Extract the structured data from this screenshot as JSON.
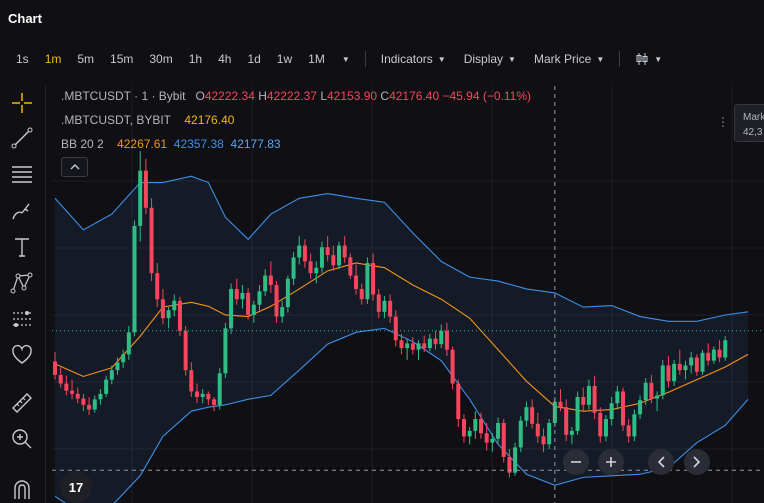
{
  "header": {
    "title": "Chart"
  },
  "toolbar": {
    "timeframes": [
      "1s",
      "1m",
      "5m",
      "15m",
      "30m",
      "1h",
      "4h",
      "1d",
      "1w",
      "1M"
    ],
    "active_timeframe": "1m",
    "indicators_label": "Indicators",
    "display_label": "Display",
    "price_type_label": "Mark Price"
  },
  "legend": {
    "symbol": ".MBTCUSDT · 1 · Bybit",
    "open_label": "O",
    "open": "42222.34",
    "high_label": "H",
    "high": "42222.37",
    "low_label": "L",
    "low": "42153.90",
    "close_label": "C",
    "close": "42176.40",
    "change": "−45.94 (−0.11%)",
    "mark_symbol": ".MBTCUSDT, BYBIT",
    "mark_value": "42176.40",
    "bb_label": "BB 20 2",
    "bb_basis": "42267.61",
    "bb_upper": "42357.38",
    "bb_lower": "42177.83"
  },
  "price_tag": {
    "label": "Mark",
    "value": "42,3"
  },
  "logo_text": "17",
  "icons": {
    "crosshair": "crosshair-icon",
    "trendline": "trendline-icon",
    "fib": "fib-levels-icon",
    "brush": "brush-icon",
    "text": "text-icon",
    "pattern": "pattern-icon",
    "measure": "measure-icon",
    "favorite": "heart-icon",
    "ruler": "ruler-icon",
    "zoom": "zoom-in-icon",
    "magnet": "magnet-icon"
  },
  "colors": {
    "up": "#2ebd85",
    "down": "#f6465d",
    "accent": "#f0b90b",
    "bb_basis": "#f7931a",
    "bb_band": "#3d8fe8"
  },
  "chart_data": {
    "type": "candlestick",
    "symbol": ".MBTCUSDT",
    "interval": "1m",
    "ylim": [
      42050,
      42480
    ],
    "candles": [
      [
        42213,
        42225,
        42190,
        42196
      ],
      [
        42196,
        42205,
        42180,
        42185
      ],
      [
        42185,
        42195,
        42170,
        42176
      ],
      [
        42176,
        42190,
        42165,
        42172
      ],
      [
        42172,
        42180,
        42160,
        42166
      ],
      [
        42166,
        42172,
        42150,
        42158
      ],
      [
        42158,
        42168,
        42145,
        42152
      ],
      [
        42152,
        42170,
        42148,
        42165
      ],
      [
        42165,
        42178,
        42158,
        42172
      ],
      [
        42172,
        42195,
        42168,
        42190
      ],
      [
        42190,
        42208,
        42184,
        42202
      ],
      [
        42202,
        42218,
        42196,
        42212
      ],
      [
        42212,
        42228,
        42205,
        42222
      ],
      [
        42222,
        42258,
        42215,
        42250
      ],
      [
        42250,
        42392,
        42245,
        42385
      ],
      [
        42385,
        42480,
        42365,
        42455
      ],
      [
        42455,
        42470,
        42400,
        42408
      ],
      [
        42408,
        42420,
        42315,
        42325
      ],
      [
        42325,
        42338,
        42282,
        42292
      ],
      [
        42292,
        42305,
        42260,
        42268
      ],
      [
        42268,
        42282,
        42255,
        42278
      ],
      [
        42278,
        42298,
        42270,
        42290
      ],
      [
        42290,
        42295,
        42245,
        42252
      ],
      [
        42252,
        42258,
        42195,
        42202
      ],
      [
        42202,
        42212,
        42168,
        42175
      ],
      [
        42175,
        42185,
        42160,
        42168
      ],
      [
        42168,
        42178,
        42160,
        42172
      ],
      [
        42172,
        42175,
        42158,
        42165
      ],
      [
        42165,
        42168,
        42150,
        42158
      ],
      [
        42158,
        42205,
        42152,
        42198
      ],
      [
        42198,
        42262,
        42192,
        42255
      ],
      [
        42255,
        42312,
        42248,
        42305
      ],
      [
        42305,
        42318,
        42285,
        42292
      ],
      [
        42292,
        42310,
        42280,
        42300
      ],
      [
        42300,
        42306,
        42266,
        42272
      ],
      [
        42272,
        42290,
        42262,
        42285
      ],
      [
        42285,
        42310,
        42278,
        42302
      ],
      [
        42302,
        42330,
        42296,
        42322
      ],
      [
        42322,
        42340,
        42300,
        42310
      ],
      [
        42310,
        42315,
        42262,
        42270
      ],
      [
        42270,
        42290,
        42262,
        42282
      ],
      [
        42282,
        42322,
        42275,
        42318
      ],
      [
        42318,
        42352,
        42310,
        42345
      ],
      [
        42345,
        42372,
        42336,
        42360
      ],
      [
        42360,
        42368,
        42332,
        42340
      ],
      [
        42340,
        42350,
        42318,
        42325
      ],
      [
        42325,
        42340,
        42312,
        42332
      ],
      [
        42332,
        42365,
        42325,
        42358
      ],
      [
        42358,
        42372,
        42340,
        42348
      ],
      [
        42348,
        42360,
        42328,
        42335
      ],
      [
        42335,
        42365,
        42330,
        42360
      ],
      [
        42360,
        42372,
        42338,
        42345
      ],
      [
        42345,
        42350,
        42318,
        42322
      ],
      [
        42322,
        42336,
        42298,
        42305
      ],
      [
        42305,
        42312,
        42285,
        42292
      ],
      [
        42292,
        42345,
        42286,
        42338
      ],
      [
        42338,
        42350,
        42290,
        42298
      ],
      [
        42298,
        42305,
        42268,
        42276
      ],
      [
        42276,
        42296,
        42268,
        42290
      ],
      [
        42290,
        42298,
        42262,
        42270
      ],
      [
        42270,
        42278,
        42232,
        42240
      ],
      [
        42240,
        42248,
        42222,
        42230
      ],
      [
        42230,
        42242,
        42215,
        42236
      ],
      [
        42236,
        42244,
        42222,
        42228
      ],
      [
        42228,
        42240,
        42215,
        42236
      ],
      [
        42236,
        42246,
        42225,
        42230
      ],
      [
        42230,
        42248,
        42226,
        42242
      ],
      [
        42242,
        42252,
        42228,
        42235
      ],
      [
        42235,
        42260,
        42230,
        42252
      ],
      [
        42252,
        42262,
        42220,
        42228
      ],
      [
        42228,
        42232,
        42178,
        42185
      ],
      [
        42185,
        42190,
        42130,
        42140
      ],
      [
        42140,
        42146,
        42110,
        42118
      ],
      [
        42118,
        42130,
        42108,
        42125
      ],
      [
        42125,
        42150,
        42115,
        42140
      ],
      [
        42140,
        42148,
        42115,
        42122
      ],
      [
        42122,
        42135,
        42100,
        42110
      ],
      [
        42110,
        42122,
        42098,
        42115
      ],
      [
        42115,
        42142,
        42108,
        42135
      ],
      [
        42135,
        42140,
        42085,
        42092
      ],
      [
        42092,
        42102,
        42066,
        42072
      ],
      [
        42072,
        42110,
        42068,
        42104
      ],
      [
        42104,
        42144,
        42098,
        42138
      ],
      [
        42138,
        42162,
        42130,
        42155
      ],
      [
        42155,
        42165,
        42128,
        42134
      ],
      [
        42134,
        42148,
        42110,
        42118
      ],
      [
        42118,
        42128,
        42098,
        42108
      ],
      [
        42108,
        42140,
        42102,
        42135
      ],
      [
        42135,
        42168,
        42130,
        42162
      ],
      [
        42162,
        42178,
        42150,
        42155
      ],
      [
        42155,
        42165,
        42112,
        42120
      ],
      [
        42120,
        42130,
        42108,
        42125
      ],
      [
        42125,
        42175,
        42120,
        42168
      ],
      [
        42168,
        42180,
        42150,
        42158
      ],
      [
        42158,
        42190,
        42152,
        42182
      ],
      [
        42182,
        42195,
        42140,
        42148
      ],
      [
        42148,
        42155,
        42110,
        42118
      ],
      [
        42118,
        42145,
        42112,
        42140
      ],
      [
        42140,
        42168,
        42132,
        42160
      ],
      [
        42160,
        42182,
        42152,
        42175
      ],
      [
        42175,
        42180,
        42125,
        42132
      ],
      [
        42132,
        42140,
        42110,
        42118
      ],
      [
        42118,
        42152,
        42112,
        42146
      ],
      [
        42146,
        42170,
        42140,
        42164
      ],
      [
        42164,
        42192,
        42158,
        42186
      ],
      [
        42186,
        42196,
        42160,
        42166
      ],
      [
        42166,
        42175,
        42150,
        42170
      ],
      [
        42170,
        42215,
        42165,
        42208
      ],
      [
        42208,
        42220,
        42180,
        42188
      ],
      [
        42188,
        42215,
        42182,
        42210
      ],
      [
        42210,
        42228,
        42196,
        42202
      ],
      [
        42202,
        42214,
        42190,
        42208
      ],
      [
        42208,
        42225,
        42198,
        42218
      ],
      [
        42218,
        42222,
        42195,
        42200
      ],
      [
        42200,
        42228,
        42196,
        42224
      ],
      [
        42224,
        42236,
        42208,
        42214
      ],
      [
        42214,
        42232,
        42210,
        42228
      ],
      [
        42228,
        42240,
        42212,
        42218
      ],
      [
        42218,
        42245,
        42214,
        42240
      ]
    ],
    "bb_upper": [
      [
        0,
        42420
      ],
      [
        5,
        42380
      ],
      [
        10,
        42400
      ],
      [
        15,
        42440
      ],
      [
        19,
        42440
      ],
      [
        24,
        42448
      ],
      [
        27,
        42440
      ],
      [
        30,
        42396
      ],
      [
        34,
        42368
      ],
      [
        38,
        42400
      ],
      [
        43,
        42420
      ],
      [
        48,
        42426
      ],
      [
        53,
        42420
      ],
      [
        58,
        42415
      ],
      [
        63,
        42376
      ],
      [
        68,
        42340
      ],
      [
        73,
        42320
      ],
      [
        78,
        42315
      ],
      [
        83,
        42305
      ],
      [
        88,
        42300
      ],
      [
        93,
        42282
      ],
      [
        98,
        42284
      ],
      [
        103,
        42270
      ],
      [
        108,
        42264
      ],
      [
        113,
        42264
      ],
      [
        118,
        42272
      ],
      [
        122,
        42276
      ]
    ],
    "bb_basis": [
      [
        0,
        42210
      ],
      [
        5,
        42194
      ],
      [
        10,
        42205
      ],
      [
        15,
        42245
      ],
      [
        19,
        42282
      ],
      [
        24,
        42288
      ],
      [
        27,
        42283
      ],
      [
        30,
        42272
      ],
      [
        34,
        42270
      ],
      [
        38,
        42283
      ],
      [
        43,
        42305
      ],
      [
        48,
        42328
      ],
      [
        53,
        42338
      ],
      [
        58,
        42332
      ],
      [
        63,
        42310
      ],
      [
        68,
        42292
      ],
      [
        73,
        42268
      ],
      [
        78,
        42228
      ],
      [
        83,
        42188
      ],
      [
        88,
        42156
      ],
      [
        93,
        42150
      ],
      [
        98,
        42152
      ],
      [
        103,
        42160
      ],
      [
        108,
        42174
      ],
      [
        113,
        42190
      ],
      [
        118,
        42206
      ],
      [
        122,
        42222
      ]
    ],
    "bb_lower": [
      [
        0,
        42042
      ],
      [
        5,
        42018
      ],
      [
        10,
        42030
      ],
      [
        15,
        42068
      ],
      [
        19,
        42118
      ],
      [
        24,
        42150
      ],
      [
        27,
        42155
      ],
      [
        30,
        42158
      ],
      [
        34,
        42165
      ],
      [
        38,
        42170
      ],
      [
        43,
        42202
      ],
      [
        48,
        42235
      ],
      [
        53,
        42250
      ],
      [
        58,
        42255
      ],
      [
        63,
        42238
      ],
      [
        68,
        42214
      ],
      [
        73,
        42165
      ],
      [
        78,
        42108
      ],
      [
        83,
        42070
      ],
      [
        88,
        42056
      ],
      [
        93,
        42066
      ],
      [
        98,
        42068
      ],
      [
        103,
        42070
      ],
      [
        108,
        42078
      ],
      [
        113,
        42110
      ],
      [
        118,
        42132
      ],
      [
        122,
        42165
      ]
    ],
    "crosshair_index": 88,
    "crosshair_price": 42075,
    "mark_price": 42252
  }
}
